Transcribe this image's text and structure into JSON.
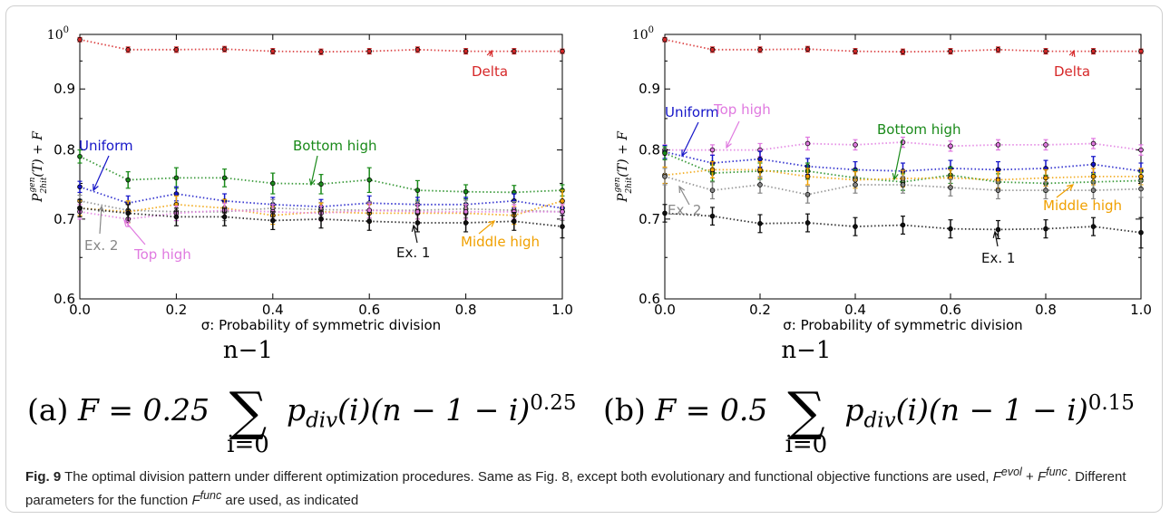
{
  "chart_data": [
    {
      "type": "line",
      "panel": "a",
      "xlabel": "σ: Probability of symmetric division",
      "ylabel": "P_2hit^gen(T) + F",
      "xlim": [
        0.0,
        1.0
      ],
      "ylim": [
        0.6,
        1.0
      ],
      "y_scale": "log",
      "x": [
        0.0,
        0.1,
        0.2,
        0.3,
        0.4,
        0.5,
        0.6,
        0.7,
        0.8,
        0.9,
        1.0
      ],
      "x_ticks": [
        "0.0",
        "0.2",
        "0.4",
        "0.6",
        "0.8",
        "1.0"
      ],
      "y_ticks": [
        "0.6",
        "0.7",
        "0.8",
        "0.9",
        "10^0"
      ],
      "series": [
        {
          "name": "Delta",
          "color": "#d62728",
          "values": [
            0.99,
            0.971,
            0.971,
            0.972,
            0.968,
            0.967,
            0.968,
            0.971,
            0.968,
            0.968,
            0.968
          ],
          "err": [
            0.004,
            0.005,
            0.005,
            0.005,
            0.005,
            0.005,
            0.005,
            0.005,
            0.005,
            0.005,
            0.004
          ]
        },
        {
          "name": "Bottom high",
          "color": "#1a8a1a",
          "values": [
            0.79,
            0.755,
            0.758,
            0.758,
            0.75,
            0.749,
            0.755,
            0.74,
            0.738,
            0.737,
            0.74
          ],
          "err": [
            0.01,
            0.012,
            0.015,
            0.013,
            0.015,
            0.014,
            0.018,
            0.014,
            0.01,
            0.01,
            0.008
          ]
        },
        {
          "name": "Uniform",
          "color": "#1515c8",
          "values": [
            0.745,
            0.722,
            0.735,
            0.725,
            0.72,
            0.717,
            0.722,
            0.72,
            0.72,
            0.725,
            0.715
          ],
          "err": [
            0.008,
            0.01,
            0.01,
            0.01,
            0.01,
            0.01,
            0.01,
            0.01,
            0.01,
            0.01,
            0.01
          ]
        },
        {
          "name": "Ex. 2",
          "color": "#888888",
          "values": [
            0.725,
            0.712,
            0.71,
            0.71,
            0.715,
            0.713,
            0.712,
            0.712,
            0.714,
            0.712,
            0.71
          ],
          "err": [
            0.008,
            0.012,
            0.012,
            0.012,
            0.012,
            0.01,
            0.012,
            0.012,
            0.012,
            0.012,
            0.012
          ]
        },
        {
          "name": "Middle high",
          "color": "#f0a000",
          "values": [
            0.715,
            0.71,
            0.72,
            0.715,
            0.705,
            0.71,
            0.708,
            0.708,
            0.708,
            0.705,
            0.725
          ],
          "err": [
            0.01,
            0.015,
            0.012,
            0.012,
            0.012,
            0.012,
            0.012,
            0.012,
            0.012,
            0.012,
            0.015
          ]
        },
        {
          "name": "Top high",
          "color": "#e07ae0",
          "values": [
            0.71,
            0.7,
            0.708,
            0.712,
            0.71,
            0.708,
            0.712,
            0.71,
            0.71,
            0.71,
            0.71
          ],
          "err": [
            0.01,
            0.01,
            0.01,
            0.01,
            0.01,
            0.01,
            0.01,
            0.01,
            0.01,
            0.01,
            0.01
          ]
        },
        {
          "name": "Ex. 1",
          "color": "#111111",
          "values": [
            0.715,
            0.708,
            0.703,
            0.703,
            0.698,
            0.7,
            0.697,
            0.695,
            0.695,
            0.697,
            0.69
          ],
          "err": [
            0.012,
            0.012,
            0.012,
            0.012,
            0.012,
            0.012,
            0.012,
            0.012,
            0.012,
            0.012,
            0.015
          ]
        }
      ]
    },
    {
      "type": "line",
      "panel": "b",
      "xlabel": "σ: Probability of symmetric division",
      "ylabel": "P_2hit^gen(T) + F",
      "xlim": [
        0.0,
        1.0
      ],
      "ylim": [
        0.6,
        1.0
      ],
      "y_scale": "log",
      "x": [
        0.0,
        0.1,
        0.2,
        0.3,
        0.4,
        0.5,
        0.6,
        0.7,
        0.8,
        0.9,
        1.0
      ],
      "x_ticks": [
        "0.0",
        "0.2",
        "0.4",
        "0.6",
        "0.8",
        "1.0"
      ],
      "y_ticks": [
        "0.6",
        "0.7",
        "0.8",
        "0.9",
        "10^0"
      ],
      "series": [
        {
          "name": "Delta",
          "color": "#d62728",
          "values": [
            0.99,
            0.971,
            0.971,
            0.972,
            0.968,
            0.967,
            0.968,
            0.971,
            0.968,
            0.968,
            0.968
          ],
          "err": [
            0.004,
            0.005,
            0.005,
            0.005,
            0.005,
            0.005,
            0.005,
            0.005,
            0.005,
            0.005,
            0.004
          ]
        },
        {
          "name": "Top high",
          "color": "#e07ae0",
          "values": [
            0.8,
            0.8,
            0.8,
            0.81,
            0.808,
            0.812,
            0.806,
            0.808,
            0.808,
            0.81,
            0.8
          ],
          "err": [
            0.008,
            0.008,
            0.01,
            0.01,
            0.008,
            0.008,
            0.008,
            0.008,
            0.008,
            0.008,
            0.008
          ]
        },
        {
          "name": "Uniform",
          "color": "#1515c8",
          "values": [
            0.797,
            0.78,
            0.786,
            0.775,
            0.77,
            0.768,
            0.772,
            0.77,
            0.772,
            0.778,
            0.768
          ],
          "err": [
            0.01,
            0.012,
            0.012,
            0.012,
            0.012,
            0.012,
            0.012,
            0.012,
            0.012,
            0.012,
            0.012
          ]
        },
        {
          "name": "Bottom high",
          "color": "#1a8a1a",
          "values": [
            0.795,
            0.765,
            0.768,
            0.768,
            0.758,
            0.752,
            0.762,
            0.752,
            0.75,
            0.752,
            0.754
          ],
          "err": [
            0.01,
            0.012,
            0.012,
            0.012,
            0.012,
            0.012,
            0.012,
            0.012,
            0.012,
            0.012,
            0.012
          ]
        },
        {
          "name": "Middle high",
          "color": "#f0a000",
          "values": [
            0.762,
            0.77,
            0.77,
            0.76,
            0.755,
            0.757,
            0.758,
            0.755,
            0.758,
            0.76,
            0.76
          ],
          "err": [
            0.012,
            0.012,
            0.012,
            0.012,
            0.012,
            0.012,
            0.012,
            0.012,
            0.012,
            0.012,
            0.012
          ]
        },
        {
          "name": "Ex. 2",
          "color": "#888888",
          "values": [
            0.76,
            0.74,
            0.748,
            0.734,
            0.748,
            0.748,
            0.744,
            0.74,
            0.74,
            0.74,
            0.742
          ],
          "err": [
            0.012,
            0.012,
            0.012,
            0.012,
            0.012,
            0.012,
            0.012,
            0.012,
            0.012,
            0.012,
            0.012
          ]
        },
        {
          "name": "Ex. 1",
          "color": "#111111",
          "values": [
            0.708,
            0.704,
            0.694,
            0.695,
            0.69,
            0.692,
            0.687,
            0.686,
            0.687,
            0.69,
            0.682
          ],
          "err": [
            0.012,
            0.012,
            0.012,
            0.012,
            0.012,
            0.012,
            0.012,
            0.012,
            0.012,
            0.012,
            0.02
          ]
        }
      ]
    }
  ],
  "annotations": {
    "a": [
      {
        "text": "Delta",
        "color": "#d62728"
      },
      {
        "text": "Bottom high",
        "color": "#1a8a1a"
      },
      {
        "text": "Uniform",
        "color": "#1515c8"
      },
      {
        "text": "Ex. 2",
        "color": "#888888"
      },
      {
        "text": "Top high",
        "color": "#e07ae0"
      },
      {
        "text": "Ex. 1",
        "color": "#111111"
      },
      {
        "text": "Middle high",
        "color": "#f0a000"
      }
    ],
    "b": [
      {
        "text": "Delta",
        "color": "#d62728"
      },
      {
        "text": "Uniform",
        "color": "#1515c8"
      },
      {
        "text": "Top high",
        "color": "#e07ae0"
      },
      {
        "text": "Bottom high",
        "color": "#1a8a1a"
      },
      {
        "text": "Ex. 2",
        "color": "#888888"
      },
      {
        "text": "Middle high",
        "color": "#f0a000"
      },
      {
        "text": "Ex. 1",
        "color": "#111111"
      }
    ]
  },
  "formulas": {
    "a": {
      "label": "(a)",
      "lhs": "F = 0.25",
      "sum_top": "n−1",
      "sum_bottom": "i=0",
      "body": "p",
      "sub": "div",
      "rest": "(i)(n − 1 − i)",
      "exp": "0.25"
    },
    "b": {
      "label": "(b)",
      "lhs": "F = 0.5",
      "sum_top": "n−1",
      "sum_bottom": "i=0",
      "body": "p",
      "sub": "div",
      "rest": "(i)(n − 1 − i)",
      "exp": "0.15"
    }
  },
  "caption": {
    "fig_label": "Fig. 9",
    "text1": " The optimal division pattern under different optimization procedures. Same as Fig. 8, except both evolutionary and functional objective functions are used, ",
    "f_evol": "F",
    "f_evol_sup": "evol",
    "plus": " + ",
    "f_func": "F",
    "f_func_sup": "func",
    "text2": ". Different parameters for the function ",
    "f_func2": "F",
    "f_func2_sup": "func",
    "text3": " are used, as indicated"
  }
}
